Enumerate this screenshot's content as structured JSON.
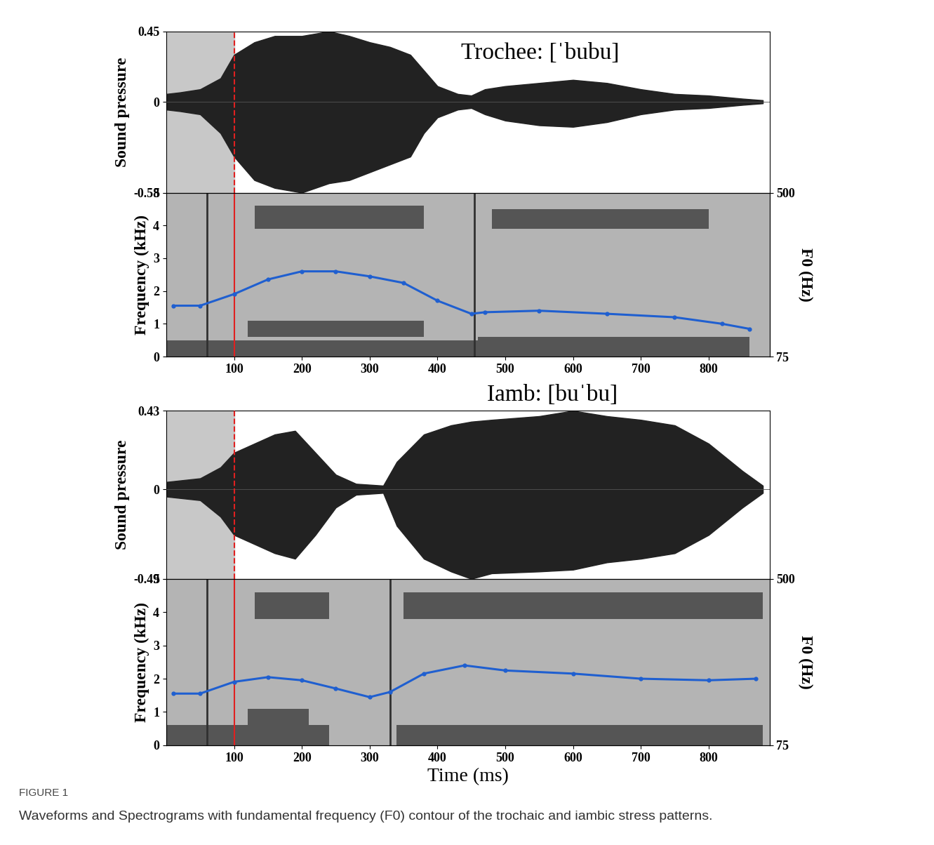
{
  "figure_label": "FIGURE 1",
  "caption": "Waveforms and Spectrograms with fundamental frequency (F0) contour of the trochaic and iambic stress patterns.",
  "chart_data": [
    {
      "type": "waveform",
      "title": "Trochee: [ˈbubu]",
      "ylabel": "Sound pressure",
      "xlim": [
        0,
        890
      ],
      "ylim": [
        -0.58,
        0.45
      ],
      "yticks": [
        -0.58,
        0,
        0.45
      ],
      "tick_labels": "y",
      "shaded_region": [
        0,
        100
      ],
      "vline": 100,
      "color": "#222222",
      "x": [
        0,
        20,
        50,
        80,
        100,
        130,
        160,
        200,
        240,
        270,
        300,
        330,
        360,
        380,
        400,
        430,
        450,
        470,
        500,
        550,
        600,
        650,
        700,
        750,
        800,
        850,
        880
      ],
      "upper": [
        0.05,
        0.06,
        0.08,
        0.15,
        0.3,
        0.38,
        0.42,
        0.42,
        0.45,
        0.42,
        0.38,
        0.35,
        0.3,
        0.2,
        0.1,
        0.05,
        0.04,
        0.08,
        0.1,
        0.12,
        0.14,
        0.12,
        0.08,
        0.05,
        0.04,
        0.02,
        0.01
      ],
      "lower": [
        -0.05,
        -0.06,
        -0.08,
        -0.2,
        -0.35,
        -0.5,
        -0.55,
        -0.58,
        -0.52,
        -0.5,
        -0.45,
        -0.4,
        -0.35,
        -0.2,
        -0.1,
        -0.05,
        -0.04,
        -0.08,
        -0.12,
        -0.15,
        -0.16,
        -0.13,
        -0.08,
        -0.05,
        -0.04,
        -0.02,
        -0.01
      ]
    },
    {
      "type": "spectrogram",
      "ylabel": "Frequency (kHz)",
      "y2label": "F0 (Hz)",
      "xlim": [
        0,
        890
      ],
      "xticks": [
        100,
        200,
        300,
        400,
        500,
        600,
        700,
        800
      ],
      "ylim": [
        0,
        5
      ],
      "yticks": [
        0,
        1,
        2,
        3,
        4,
        5
      ],
      "y2lim": [
        75,
        500
      ],
      "y2ticks": [
        75,
        500
      ],
      "vline": 100,
      "bands": [
        [
          0,
          460,
          0,
          0.5
        ],
        [
          120,
          380,
          0.6,
          1.1
        ],
        [
          130,
          380,
          3.9,
          4.6
        ],
        [
          460,
          860,
          0,
          0.6
        ],
        [
          480,
          800,
          3.9,
          4.5
        ]
      ],
      "bursts": [
        60,
        455
      ],
      "series": [
        {
          "axis": "y2",
          "color": "#1f5fd0",
          "marker": "o",
          "x": [
            10,
            50,
            100,
            150,
            200,
            250,
            300,
            350,
            400,
            450,
            470,
            550,
            650,
            750,
            820,
            860
          ],
          "values": [
            207,
            207,
            237,
            275,
            296,
            296,
            283,
            266,
            220,
            186,
            190,
            194,
            186,
            177,
            160,
            147
          ]
        }
      ]
    },
    {
      "type": "waveform",
      "title": "Iamb: [buˈbu]",
      "ylabel": "Sound pressure",
      "xlim": [
        0,
        890
      ],
      "ylim": [
        -0.49,
        0.43
      ],
      "yticks": [
        -0.49,
        0,
        0.43
      ],
      "tick_labels": "y",
      "shaded_region": [
        0,
        100
      ],
      "vline": 100,
      "color": "#222222",
      "x": [
        0,
        50,
        80,
        100,
        130,
        160,
        190,
        220,
        250,
        280,
        320,
        340,
        380,
        420,
        450,
        480,
        550,
        600,
        650,
        700,
        750,
        800,
        850,
        880
      ],
      "upper": [
        0.04,
        0.06,
        0.12,
        0.2,
        0.25,
        0.3,
        0.32,
        0.2,
        0.08,
        0.03,
        0.02,
        0.15,
        0.3,
        0.35,
        0.37,
        0.38,
        0.4,
        0.43,
        0.4,
        0.38,
        0.35,
        0.25,
        0.1,
        0.02
      ],
      "lower": [
        -0.04,
        -0.06,
        -0.15,
        -0.25,
        -0.3,
        -0.35,
        -0.38,
        -0.25,
        -0.1,
        -0.03,
        -0.02,
        -0.2,
        -0.38,
        -0.45,
        -0.49,
        -0.46,
        -0.45,
        -0.44,
        -0.4,
        -0.38,
        -0.35,
        -0.25,
        -0.1,
        -0.02
      ]
    },
    {
      "type": "spectrogram",
      "ylabel": "Frequency (kHz)",
      "y2label": "F0 (Hz)",
      "xlabel": "Time (ms)",
      "xlim": [
        0,
        890
      ],
      "xticks": [
        100,
        200,
        300,
        400,
        500,
        600,
        700,
        800
      ],
      "ylim": [
        0,
        5
      ],
      "yticks": [
        0,
        1,
        2,
        3,
        4,
        5
      ],
      "y2lim": [
        75,
        500
      ],
      "y2ticks": [
        75,
        500
      ],
      "vline": 100,
      "bands": [
        [
          0,
          240,
          0,
          0.6
        ],
        [
          120,
          210,
          0.6,
          1.1
        ],
        [
          130,
          240,
          3.8,
          4.6
        ],
        [
          340,
          880,
          0,
          0.6
        ],
        [
          350,
          880,
          3.8,
          4.6
        ]
      ],
      "bursts": [
        60,
        330
      ],
      "series": [
        {
          "axis": "y2",
          "color": "#1f5fd0",
          "marker": "o",
          "x": [
            10,
            50,
            100,
            150,
            200,
            250,
            300,
            330,
            380,
            440,
            500,
            600,
            700,
            800,
            870
          ],
          "values": [
            207,
            207,
            237,
            249,
            241,
            220,
            198,
            211,
            258,
            279,
            266,
            258,
            245,
            241,
            245
          ]
        }
      ]
    }
  ]
}
